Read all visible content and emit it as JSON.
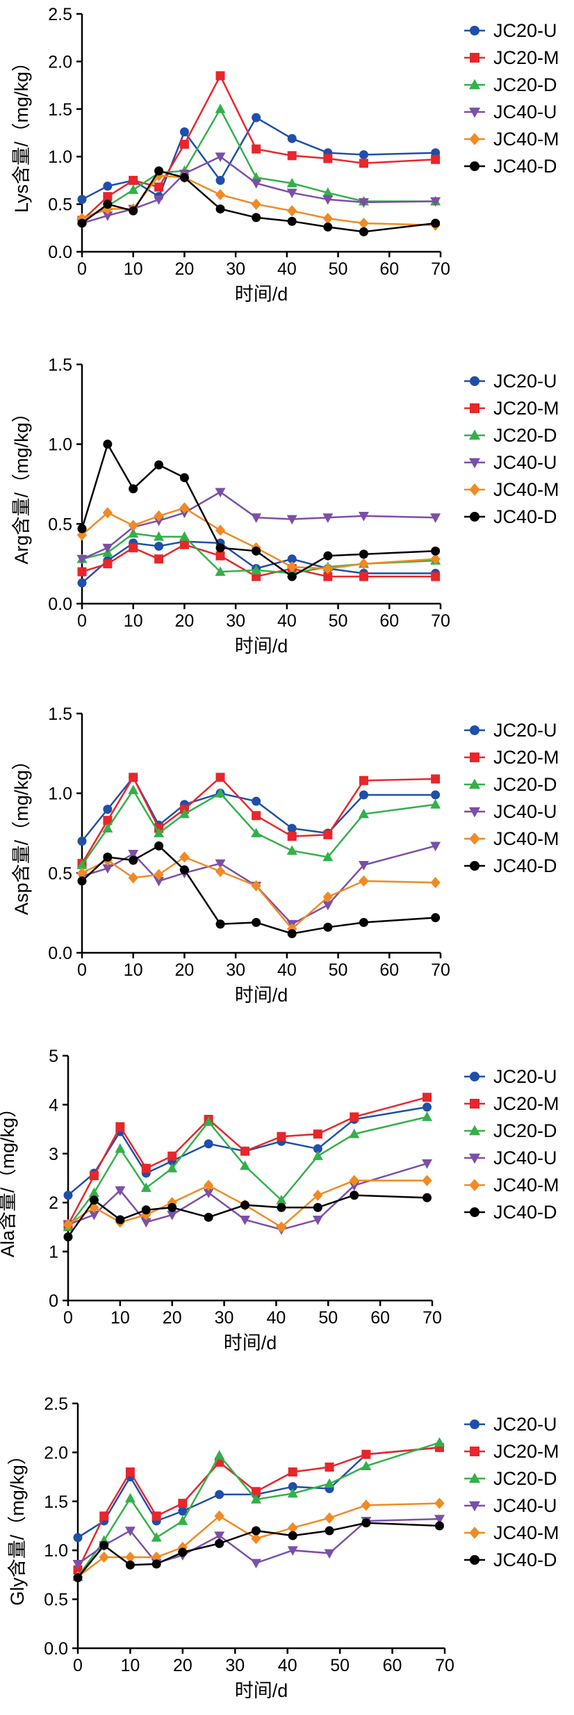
{
  "colors": {
    "JC20-U": "#1f4fa8",
    "JC20-M": "#e8262b",
    "JC20-D": "#33b04a",
    "JC40-U": "#7b4fa8",
    "JC40-M": "#f08a24",
    "JC40-D": "#000000"
  },
  "markers": {
    "JC20-U": "circle",
    "JC20-M": "square",
    "JC20-D": "triangle-up",
    "JC40-U": "triangle-down",
    "JC40-M": "diamond",
    "JC40-D": "circle"
  },
  "chart_data": [
    {
      "type": "line",
      "xlabel": "时间/d",
      "ylabel": "Lys含量/（mg/kg）",
      "xlim": [
        0,
        70
      ],
      "ylim": [
        0,
        2.5
      ],
      "xticks": [
        "0",
        "10",
        "20",
        "30",
        "40",
        "50",
        "60",
        "70"
      ],
      "yticks": [
        "0.0",
        "0.5",
        "1.0",
        "1.5",
        "2.0",
        "2.5"
      ],
      "grid": false,
      "legend": "right",
      "series": [
        {
          "name": "JC20-U",
          "x": [
            0,
            5,
            10,
            15,
            20,
            27,
            34,
            41,
            48,
            55,
            69
          ],
          "y": [
            0.55,
            0.69,
            0.75,
            0.58,
            1.26,
            0.75,
            1.41,
            1.19,
            1.04,
            1.02,
            1.04
          ]
        },
        {
          "name": "JC20-M",
          "x": [
            0,
            5,
            10,
            15,
            20,
            27,
            34,
            41,
            48,
            55,
            69
          ],
          "y": [
            0.33,
            0.58,
            0.75,
            0.68,
            1.13,
            1.85,
            1.08,
            1.01,
            0.98,
            0.93,
            0.97
          ]
        },
        {
          "name": "JC20-D",
          "x": [
            0,
            5,
            10,
            15,
            20,
            27,
            34,
            41,
            48,
            55,
            69
          ],
          "y": [
            0.33,
            0.48,
            0.65,
            0.83,
            0.85,
            1.5,
            0.78,
            0.72,
            0.62,
            0.53,
            0.53
          ]
        },
        {
          "name": "JC40-U",
          "x": [
            0,
            5,
            10,
            15,
            20,
            27,
            34,
            41,
            48,
            55,
            69
          ],
          "y": [
            0.3,
            0.38,
            0.45,
            0.55,
            0.82,
            1.0,
            0.72,
            0.62,
            0.55,
            0.52,
            0.53
          ]
        },
        {
          "name": "JC40-M",
          "x": [
            0,
            5,
            10,
            15,
            20,
            27,
            34,
            41,
            48,
            55,
            69
          ],
          "y": [
            0.35,
            0.45,
            0.45,
            0.8,
            0.78,
            0.6,
            0.5,
            0.43,
            0.35,
            0.3,
            0.28
          ]
        },
        {
          "name": "JC40-D",
          "x": [
            0,
            5,
            10,
            15,
            20,
            27,
            34,
            41,
            48,
            55,
            69
          ],
          "y": [
            0.3,
            0.5,
            0.43,
            0.85,
            0.78,
            0.45,
            0.36,
            0.32,
            0.26,
            0.21,
            0.3
          ]
        }
      ]
    },
    {
      "type": "line",
      "xlabel": "时间/d",
      "ylabel": "Arg含量/（mg/kg）",
      "xlim": [
        0,
        70
      ],
      "ylim": [
        0,
        1.5
      ],
      "xticks": [
        "0",
        "10",
        "20",
        "30",
        "40",
        "50",
        "60",
        "70"
      ],
      "yticks": [
        "0.0",
        "0.5",
        "1.0",
        "1.5"
      ],
      "grid": false,
      "legend": "right",
      "series": [
        {
          "name": "JC20-U",
          "x": [
            0,
            5,
            10,
            15,
            20,
            27,
            34,
            41,
            48,
            55,
            69
          ],
          "y": [
            0.13,
            0.27,
            0.38,
            0.36,
            0.39,
            0.38,
            0.22,
            0.28,
            0.22,
            0.19,
            0.19
          ]
        },
        {
          "name": "JC20-M",
          "x": [
            0,
            5,
            10,
            15,
            20,
            27,
            34,
            41,
            48,
            55,
            69
          ],
          "y": [
            0.2,
            0.25,
            0.35,
            0.28,
            0.37,
            0.3,
            0.17,
            0.22,
            0.17,
            0.17,
            0.17
          ]
        },
        {
          "name": "JC20-D",
          "x": [
            0,
            5,
            10,
            15,
            20,
            27,
            34,
            41,
            48,
            55,
            69
          ],
          "y": [
            0.28,
            0.32,
            0.44,
            0.42,
            0.42,
            0.2,
            0.21,
            0.19,
            0.23,
            0.25,
            0.27
          ]
        },
        {
          "name": "JC40-U",
          "x": [
            0,
            5,
            10,
            15,
            20,
            27,
            34,
            41,
            48,
            55,
            69
          ],
          "y": [
            0.28,
            0.35,
            0.48,
            0.52,
            0.57,
            0.7,
            0.54,
            0.53,
            0.54,
            0.55,
            0.54
          ]
        },
        {
          "name": "JC40-M",
          "x": [
            0,
            5,
            10,
            15,
            20,
            27,
            34,
            41,
            48,
            55,
            69
          ],
          "y": [
            0.43,
            0.57,
            0.49,
            0.55,
            0.6,
            0.46,
            0.35,
            0.23,
            0.22,
            0.25,
            0.28
          ]
        },
        {
          "name": "JC40-D",
          "x": [
            0,
            5,
            10,
            15,
            20,
            27,
            34,
            41,
            48,
            55,
            69
          ],
          "y": [
            0.47,
            1.0,
            0.72,
            0.87,
            0.79,
            0.35,
            0.33,
            0.17,
            0.3,
            0.31,
            0.33
          ]
        }
      ]
    },
    {
      "type": "line",
      "xlabel": "时间/d",
      "ylabel": "Asp含量/（mg/kg）",
      "xlim": [
        0,
        70
      ],
      "ylim": [
        0,
        1.5
      ],
      "xticks": [
        "0",
        "10",
        "20",
        "30",
        "40",
        "50",
        "60",
        "70"
      ],
      "yticks": [
        "0.0",
        "0.5",
        "1.0",
        "1.5"
      ],
      "grid": false,
      "legend": "right",
      "series": [
        {
          "name": "JC20-U",
          "x": [
            0,
            5,
            10,
            15,
            20,
            27,
            34,
            41,
            48,
            55,
            69
          ],
          "y": [
            0.7,
            0.9,
            1.1,
            0.8,
            0.93,
            1.0,
            0.95,
            0.78,
            0.75,
            0.99,
            0.99
          ]
        },
        {
          "name": "JC20-M",
          "x": [
            0,
            5,
            10,
            15,
            20,
            27,
            34,
            41,
            48,
            55,
            69
          ],
          "y": [
            0.56,
            0.83,
            1.1,
            0.78,
            0.9,
            1.1,
            0.86,
            0.73,
            0.74,
            1.08,
            1.09
          ]
        },
        {
          "name": "JC20-D",
          "x": [
            0,
            5,
            10,
            15,
            20,
            27,
            34,
            41,
            48,
            55,
            69
          ],
          "y": [
            0.55,
            0.78,
            1.02,
            0.75,
            0.87,
            1.0,
            0.75,
            0.64,
            0.6,
            0.87,
            0.93
          ]
        },
        {
          "name": "JC40-U",
          "x": [
            0,
            5,
            10,
            15,
            20,
            27,
            34,
            41,
            48,
            55,
            69
          ],
          "y": [
            0.48,
            0.53,
            0.62,
            0.45,
            0.5,
            0.56,
            0.42,
            0.18,
            0.3,
            0.55,
            0.67
          ]
        },
        {
          "name": "JC40-M",
          "x": [
            0,
            5,
            10,
            15,
            20,
            27,
            34,
            41,
            48,
            55,
            69
          ],
          "y": [
            0.5,
            0.58,
            0.47,
            0.49,
            0.6,
            0.51,
            0.42,
            0.15,
            0.35,
            0.45,
            0.44
          ]
        },
        {
          "name": "JC40-D",
          "x": [
            0,
            5,
            10,
            15,
            20,
            27,
            34,
            41,
            48,
            55,
            69
          ],
          "y": [
            0.45,
            0.6,
            0.58,
            0.67,
            0.52,
            0.18,
            0.19,
            0.12,
            0.16,
            0.19,
            0.22
          ]
        }
      ]
    },
    {
      "type": "line",
      "xlabel": "时间/d",
      "ylabel": "Ala含量/（mg/kg）",
      "xlim": [
        0,
        70
      ],
      "ylim": [
        0,
        5
      ],
      "xticks": [
        "0",
        "10",
        "20",
        "30",
        "40",
        "50",
        "60",
        "70"
      ],
      "yticks": [
        "0",
        "1",
        "2",
        "3",
        "4",
        "5"
      ],
      "grid": false,
      "legend": "right",
      "series": [
        {
          "name": "JC20-U",
          "x": [
            0,
            5,
            10,
            15,
            20,
            27,
            34,
            41,
            48,
            55,
            69
          ],
          "y": [
            2.15,
            2.6,
            3.45,
            2.6,
            2.85,
            3.2,
            3.05,
            3.25,
            3.1,
            3.7,
            3.95
          ]
        },
        {
          "name": "JC20-M",
          "x": [
            0,
            5,
            10,
            15,
            20,
            27,
            34,
            41,
            48,
            55,
            69
          ],
          "y": [
            1.55,
            2.55,
            3.55,
            2.7,
            2.95,
            3.7,
            3.05,
            3.35,
            3.4,
            3.75,
            4.15
          ]
        },
        {
          "name": "JC20-D",
          "x": [
            0,
            5,
            10,
            15,
            20,
            27,
            34,
            41,
            48,
            55,
            69
          ],
          "y": [
            1.5,
            2.2,
            3.1,
            2.3,
            2.7,
            3.65,
            2.75,
            2.05,
            2.95,
            3.4,
            3.75
          ]
        },
        {
          "name": "JC40-U",
          "x": [
            0,
            5,
            10,
            15,
            20,
            27,
            34,
            41,
            48,
            55,
            69
          ],
          "y": [
            1.55,
            1.75,
            2.25,
            1.6,
            1.75,
            2.2,
            1.65,
            1.45,
            1.65,
            2.35,
            2.8
          ]
        },
        {
          "name": "JC40-M",
          "x": [
            0,
            5,
            10,
            15,
            20,
            27,
            34,
            41,
            48,
            55,
            69
          ],
          "y": [
            1.55,
            1.9,
            1.6,
            1.75,
            2.0,
            2.35,
            1.95,
            1.5,
            2.15,
            2.45,
            2.45
          ]
        },
        {
          "name": "JC40-D",
          "x": [
            0,
            5,
            10,
            15,
            20,
            27,
            34,
            41,
            48,
            55,
            69
          ],
          "y": [
            1.3,
            2.05,
            1.65,
            1.85,
            1.9,
            1.7,
            1.95,
            1.9,
            1.9,
            2.15,
            2.1
          ]
        }
      ]
    },
    {
      "type": "line",
      "xlabel": "时间/d",
      "ylabel": "Gly含量/（mg/kg）",
      "xlim": [
        0,
        70
      ],
      "ylim": [
        0,
        2.5
      ],
      "xticks": [
        "0",
        "10",
        "20",
        "30",
        "40",
        "50",
        "60",
        "70"
      ],
      "yticks": [
        "0.0",
        "0.5",
        "1.0",
        "1.5",
        "2.0",
        "2.5"
      ],
      "grid": false,
      "legend": "right",
      "series": [
        {
          "name": "JC20-U",
          "x": [
            0,
            5,
            10,
            15,
            20,
            27,
            34,
            41,
            48,
            55,
            69
          ],
          "y": [
            1.13,
            1.3,
            1.75,
            1.3,
            1.4,
            1.57,
            1.57,
            1.65,
            1.63,
            1.98,
            2.05
          ]
        },
        {
          "name": "JC20-M",
          "x": [
            0,
            5,
            10,
            15,
            20,
            27,
            34,
            41,
            48,
            55,
            69
          ],
          "y": [
            0.8,
            1.35,
            1.8,
            1.35,
            1.48,
            1.9,
            1.6,
            1.8,
            1.85,
            1.98,
            2.05
          ]
        },
        {
          "name": "JC20-D",
          "x": [
            0,
            5,
            10,
            15,
            20,
            27,
            34,
            41,
            48,
            55,
            69
          ],
          "y": [
            0.73,
            1.1,
            1.53,
            1.13,
            1.3,
            1.97,
            1.52,
            1.58,
            1.68,
            1.86,
            2.1
          ]
        },
        {
          "name": "JC40-U",
          "x": [
            0,
            5,
            10,
            15,
            20,
            27,
            34,
            41,
            48,
            55,
            69
          ],
          "y": [
            0.86,
            1.05,
            1.2,
            0.87,
            0.95,
            1.15,
            0.87,
            1.0,
            0.97,
            1.3,
            1.32
          ]
        },
        {
          "name": "JC40-M",
          "x": [
            0,
            5,
            10,
            15,
            20,
            27,
            34,
            41,
            48,
            55,
            69
          ],
          "y": [
            0.73,
            0.93,
            0.93,
            0.93,
            1.03,
            1.35,
            1.12,
            1.23,
            1.33,
            1.46,
            1.48
          ]
        },
        {
          "name": "JC40-D",
          "x": [
            0,
            5,
            10,
            15,
            20,
            27,
            34,
            41,
            48,
            55,
            69
          ],
          "y": [
            0.72,
            1.05,
            0.85,
            0.86,
            0.98,
            1.07,
            1.2,
            1.15,
            1.2,
            1.28,
            1.25
          ]
        }
      ]
    }
  ]
}
